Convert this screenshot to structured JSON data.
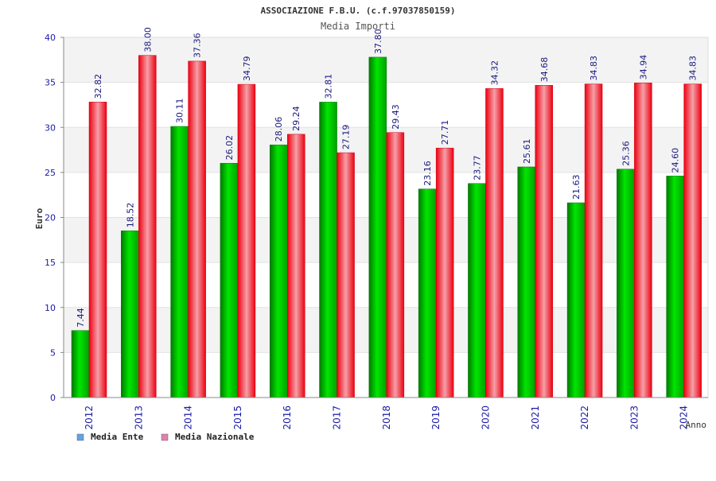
{
  "chart_data": {
    "type": "bar",
    "title": "ASSOCIAZIONE F.B.U. (c.f.97037850159)",
    "subtitle": "Media Importi",
    "xlabel": "Anno",
    "ylabel": "Euro",
    "ylim": [
      0,
      40
    ],
    "yticks": [
      "0",
      "5",
      "10",
      "15",
      "20",
      "25",
      "30",
      "35",
      "40"
    ],
    "grid": true,
    "legend_position": "bottom-left",
    "categories": [
      "2012",
      "2013",
      "2014",
      "2015",
      "2016",
      "2017",
      "2018",
      "2019",
      "2020",
      "2021",
      "2022",
      "2023",
      "2024"
    ],
    "series": [
      {
        "name": "Media Ente",
        "color": "#00c000",
        "legend_color": "#5fa4e6",
        "values": [
          7.44,
          18.52,
          30.11,
          26.02,
          28.06,
          32.81,
          37.8,
          23.16,
          23.77,
          25.61,
          21.63,
          25.36,
          24.6
        ],
        "labels": [
          "7.44",
          "18.52",
          "30.11",
          "26.02",
          "28.06",
          "32.81",
          "37.80",
          "23.16",
          "23.77",
          "25.61",
          "21.63",
          "25.36",
          "24.60"
        ]
      },
      {
        "name": "Media Nazionale",
        "color": "#ff1a2a",
        "legend_color": "#e080b0",
        "values": [
          32.82,
          38.0,
          37.36,
          34.79,
          29.24,
          27.19,
          29.43,
          27.71,
          34.32,
          34.68,
          34.83,
          34.94,
          34.83
        ],
        "labels": [
          "32.82",
          "38.00",
          "37.36",
          "34.79",
          "29.24",
          "27.19",
          "29.43",
          "27.71",
          "34.32",
          "34.68",
          "34.83",
          "34.94",
          "34.83"
        ]
      }
    ]
  }
}
